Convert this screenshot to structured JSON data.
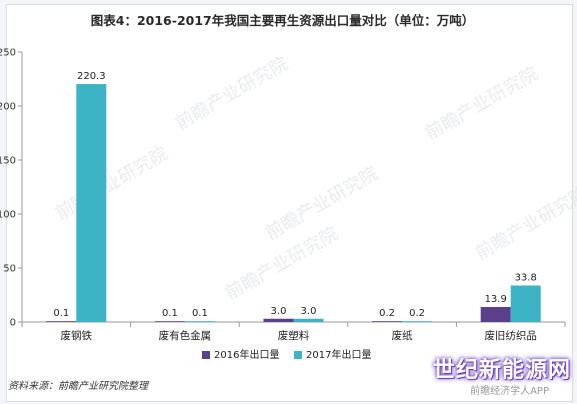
{
  "title": "图表4：2016-2017年我国主要再生资源出口量对比（单位：万吨）",
  "source": "资料来源：前瞻产业研究院整理",
  "brand": "世纪新能源网",
  "brand_sub": "前瞻经济学人APP",
  "watermark": "前瞻产业研究院",
  "colors": {
    "s2016": "#5c3f8a",
    "s2017": "#3cb4c6"
  },
  "chart_data": {
    "type": "bar",
    "categories": [
      "废钢铁",
      "废有色金属",
      "废塑料",
      "废纸",
      "废旧纺织品"
    ],
    "series": [
      {
        "name": "2016年出口量",
        "values": [
          0.1,
          0.1,
          3.0,
          0.2,
          13.9
        ]
      },
      {
        "name": "2017年出口量",
        "values": [
          220.3,
          0.1,
          3.0,
          0.2,
          33.8
        ]
      }
    ],
    "value_labels": [
      [
        "0.1",
        "0.1",
        "3.0",
        "0.2",
        "13.9"
      ],
      [
        "220.3",
        "0.1",
        "3.0",
        "0.2",
        "33.8"
      ]
    ],
    "ylim": [
      0,
      250
    ],
    "yticks": [
      "0",
      "50",
      "100",
      "150",
      "200",
      "250"
    ],
    "legend_position": "bottom"
  }
}
